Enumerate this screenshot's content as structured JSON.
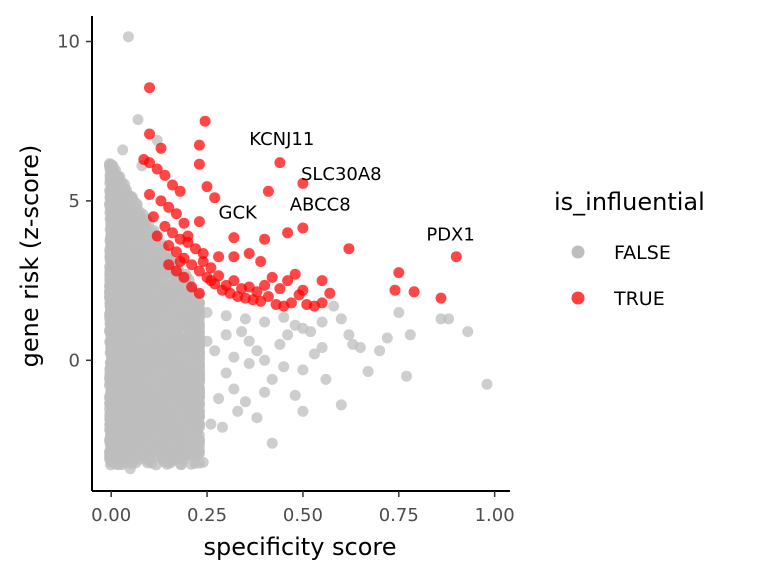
{
  "chart_data": {
    "type": "scatter",
    "xlabel": "specificity score",
    "ylabel": "gene risk (z-score)",
    "xlim": [
      -0.05,
      1.04
    ],
    "ylim": [
      -4.1,
      10.8
    ],
    "x_ticks": [
      {
        "value": 0,
        "label": "0.00"
      },
      {
        "value": 0.25,
        "label": "0.25"
      },
      {
        "value": 0.5,
        "label": "0.50"
      },
      {
        "value": 0.75,
        "label": "0.75"
      },
      {
        "value": 1.0,
        "label": "1.00"
      }
    ],
    "y_ticks": [
      {
        "value": 0,
        "label": "0"
      },
      {
        "value": 5,
        "label": "5"
      },
      {
        "value": 10,
        "label": "10"
      }
    ],
    "grid": false,
    "legend": {
      "title": "is_influential",
      "placement": "right",
      "entries": [
        {
          "label": "FALSE",
          "color": "#bebebe"
        },
        {
          "label": "TRUE",
          "color": "#ff0000"
        }
      ]
    },
    "colors": {
      "FALSE": "#bebebe",
      "TRUE": "#ff0000"
    },
    "series": [
      {
        "name": "FALSE",
        "points": [
          [
            0.045,
            10.15
          ],
          [
            0.07,
            7.55
          ],
          [
            0.12,
            6.9
          ],
          [
            0.03,
            6.6
          ],
          [
            0.08,
            6.1
          ],
          [
            0.2,
            1.6
          ],
          [
            0.25,
            1.5
          ],
          [
            0.3,
            1.4
          ],
          [
            0.35,
            1.3
          ],
          [
            0.4,
            1.2
          ],
          [
            0.45,
            1.35
          ],
          [
            0.48,
            1.1
          ],
          [
            0.5,
            1.0
          ],
          [
            0.52,
            0.9
          ],
          [
            0.55,
            1.2
          ],
          [
            0.58,
            1.7
          ],
          [
            0.6,
            1.3
          ],
          [
            0.63,
            0.5
          ],
          [
            0.65,
            0.4
          ],
          [
            0.67,
            -0.35
          ],
          [
            0.72,
            0.7
          ],
          [
            0.75,
            1.5
          ],
          [
            0.78,
            0.8
          ],
          [
            0.86,
            1.3
          ],
          [
            0.88,
            1.3
          ],
          [
            0.93,
            0.9
          ],
          [
            0.98,
            -0.75
          ],
          [
            0.77,
            -0.5
          ],
          [
            0.6,
            -1.4
          ],
          [
            0.53,
            0.2
          ],
          [
            0.55,
            0.4
          ],
          [
            0.5,
            -0.3
          ],
          [
            0.45,
            -0.2
          ],
          [
            0.42,
            -0.6
          ],
          [
            0.4,
            -1.0
          ],
          [
            0.38,
            -1.8
          ],
          [
            0.35,
            -1.3
          ],
          [
            0.32,
            -0.9
          ],
          [
            0.3,
            -0.4
          ],
          [
            0.28,
            -1.2
          ],
          [
            0.26,
            -2.0
          ],
          [
            0.24,
            -3.2
          ],
          [
            0.22,
            -2.2
          ],
          [
            0.2,
            -1.5
          ],
          [
            0.18,
            -1.0
          ],
          [
            0.42,
            -2.6
          ],
          [
            0.48,
            -1.1
          ],
          [
            0.5,
            -1.6
          ],
          [
            0.44,
            0.5
          ],
          [
            0.46,
            0.8
          ],
          [
            0.38,
            0.3
          ],
          [
            0.36,
            0.6
          ],
          [
            0.34,
            0.9
          ],
          [
            0.32,
            0.1
          ],
          [
            0.3,
            0.8
          ],
          [
            0.27,
            0.3
          ],
          [
            0.25,
            0.6
          ],
          [
            0.23,
            -0.5
          ],
          [
            0.21,
            0.2
          ],
          [
            0.19,
            0.5
          ],
          [
            0.17,
            -1.8
          ],
          [
            0.15,
            -2.3
          ],
          [
            0.13,
            -3.0
          ],
          [
            0.05,
            -3.4
          ],
          [
            0.08,
            -2.8
          ],
          [
            0.1,
            -2.5
          ],
          [
            0.62,
            0.8
          ],
          [
            0.56,
            -0.6
          ],
          [
            0.7,
            0.3
          ],
          [
            0.4,
            0.0
          ],
          [
            0.36,
            -0.1
          ],
          [
            0.29,
            -2.1
          ],
          [
            0.33,
            -1.6
          ],
          [
            0.21,
            -1.9
          ],
          [
            0.16,
            -2.6
          ]
        ]
      },
      {
        "name": "TRUE",
        "points": [
          [
            0.1,
            8.55
          ],
          [
            0.245,
            7.5
          ],
          [
            0.1,
            7.1
          ],
          [
            0.23,
            6.75
          ],
          [
            0.13,
            6.65
          ],
          [
            0.085,
            6.3
          ],
          [
            0.1,
            6.2
          ],
          [
            0.12,
            6.0
          ],
          [
            0.14,
            5.8
          ],
          [
            0.16,
            5.5
          ],
          [
            0.18,
            5.3
          ],
          [
            0.1,
            5.2
          ],
          [
            0.13,
            5.0
          ],
          [
            0.15,
            4.8
          ],
          [
            0.17,
            4.6
          ],
          [
            0.19,
            4.3
          ],
          [
            0.11,
            4.5
          ],
          [
            0.14,
            4.2
          ],
          [
            0.16,
            4.0
          ],
          [
            0.18,
            3.8
          ],
          [
            0.2,
            3.7
          ],
          [
            0.12,
            3.9
          ],
          [
            0.15,
            3.6
          ],
          [
            0.17,
            3.4
          ],
          [
            0.19,
            3.2
          ],
          [
            0.21,
            3.0
          ],
          [
            0.23,
            2.8
          ],
          [
            0.25,
            2.6
          ],
          [
            0.27,
            2.4
          ],
          [
            0.29,
            2.2
          ],
          [
            0.31,
            2.1
          ],
          [
            0.33,
            2.0
          ],
          [
            0.35,
            1.95
          ],
          [
            0.37,
            1.9
          ],
          [
            0.39,
            1.85
          ],
          [
            0.41,
            2.0
          ],
          [
            0.43,
            1.75
          ],
          [
            0.45,
            1.7
          ],
          [
            0.47,
            1.8
          ],
          [
            0.49,
            2.05
          ],
          [
            0.51,
            1.75
          ],
          [
            0.53,
            1.7
          ],
          [
            0.55,
            1.8
          ],
          [
            0.57,
            2.1
          ],
          [
            0.2,
            3.9
          ],
          [
            0.22,
            3.5
          ],
          [
            0.24,
            3.1
          ],
          [
            0.26,
            2.9
          ],
          [
            0.28,
            2.65
          ],
          [
            0.3,
            2.35
          ],
          [
            0.32,
            2.5
          ],
          [
            0.34,
            2.25
          ],
          [
            0.36,
            2.3
          ],
          [
            0.38,
            2.15
          ],
          [
            0.4,
            2.35
          ],
          [
            0.42,
            2.6
          ],
          [
            0.44,
            2.25
          ],
          [
            0.46,
            2.5
          ],
          [
            0.48,
            2.7
          ],
          [
            0.5,
            2.2
          ],
          [
            0.24,
            3.35
          ],
          [
            0.26,
            2.5
          ],
          [
            0.28,
            3.25
          ],
          [
            0.32,
            3.25
          ],
          [
            0.36,
            3.35
          ],
          [
            0.39,
            3.1
          ],
          [
            0.25,
            5.45
          ],
          [
            0.44,
            6.2
          ],
          [
            0.23,
            6.15
          ],
          [
            0.27,
            5.1
          ],
          [
            0.41,
            5.3
          ],
          [
            0.5,
            5.55
          ],
          [
            0.23,
            4.35
          ],
          [
            0.32,
            3.85
          ],
          [
            0.4,
            3.8
          ],
          [
            0.46,
            4.0
          ],
          [
            0.5,
            4.15
          ],
          [
            0.62,
            3.5
          ],
          [
            0.9,
            3.25
          ],
          [
            0.75,
            2.75
          ],
          [
            0.74,
            2.2
          ],
          [
            0.79,
            2.15
          ],
          [
            0.86,
            1.95
          ],
          [
            0.55,
            2.5
          ],
          [
            0.15,
            3.0
          ],
          [
            0.17,
            2.8
          ],
          [
            0.19,
            2.6
          ],
          [
            0.21,
            2.3
          ],
          [
            0.23,
            2.1
          ],
          [
            0.18,
            3.1
          ]
        ]
      }
    ],
    "annotations": [
      {
        "text": "KCNJ11",
        "x": 0.445,
        "y": 6.75
      },
      {
        "text": "SLC30A8",
        "x": 0.6,
        "y": 5.65
      },
      {
        "text": "GCK",
        "x": 0.33,
        "y": 4.45
      },
      {
        "text": "ABCC8",
        "x": 0.545,
        "y": 4.7
      },
      {
        "text": "PDX1",
        "x": 0.885,
        "y": 3.75
      }
    ]
  }
}
